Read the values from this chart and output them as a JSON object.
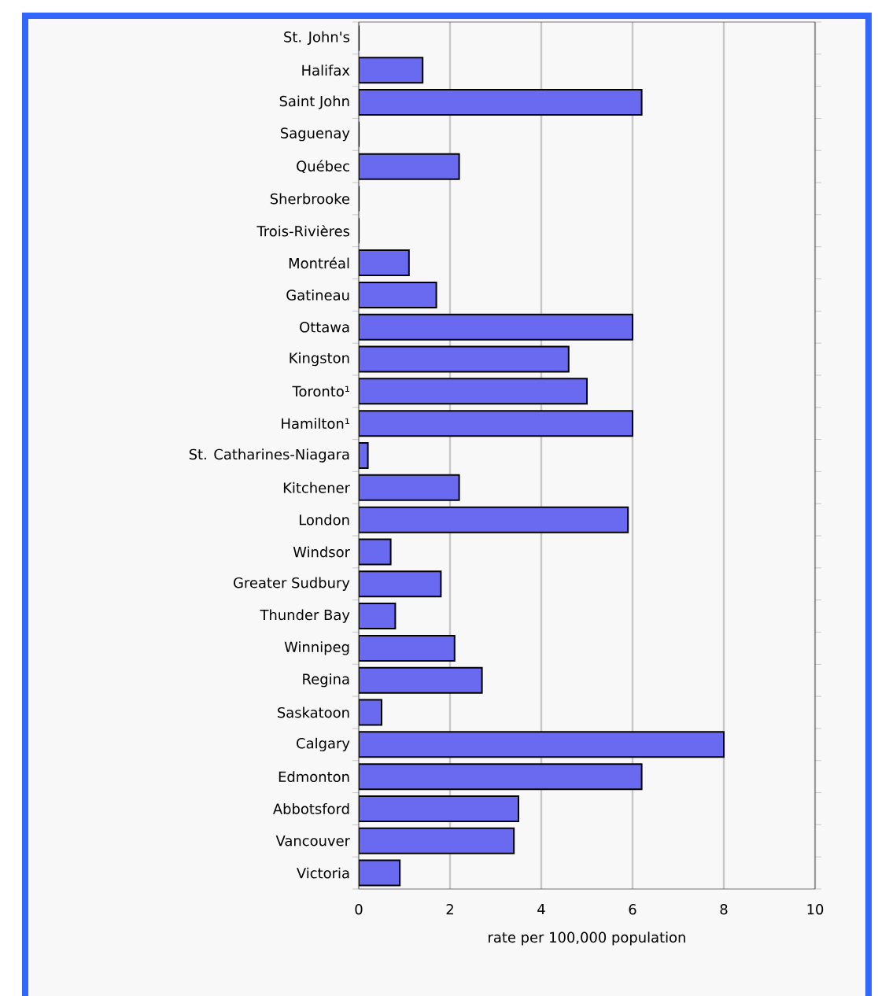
{
  "chart_data": {
    "type": "bar",
    "orientation": "horizontal",
    "categories": [
      "St. John's",
      "Halifax",
      "Saint John",
      "Saguenay",
      "Québec",
      "Sherbrooke",
      "Trois-Rivières",
      "Montréal",
      "Gatineau",
      "Ottawa",
      "Kingston",
      "Toronto¹",
      "Hamilton¹",
      "St. Catharines-Niagara",
      "Kitchener",
      "London",
      "Windsor",
      "Greater Sudbury",
      "Thunder Bay",
      "Winnipeg",
      "Regina",
      "Saskatoon",
      "Calgary",
      "Edmonton",
      "Abbotsford",
      "Vancouver",
      "Victoria"
    ],
    "values": [
      0,
      1.4,
      6.2,
      0,
      2.2,
      0,
      0,
      1.1,
      1.7,
      6.0,
      4.6,
      5.0,
      6.0,
      0.2,
      2.2,
      5.9,
      0.7,
      1.8,
      0.8,
      2.1,
      2.7,
      0.5,
      8.0,
      6.2,
      3.5,
      3.4,
      0.9
    ],
    "color": "#6a6af0",
    "xlabel": "rate per 100,000 population",
    "xlim": [
      0,
      10
    ],
    "xticks": [
      0,
      2,
      4,
      6,
      8,
      10
    ],
    "grid": "x"
  }
}
